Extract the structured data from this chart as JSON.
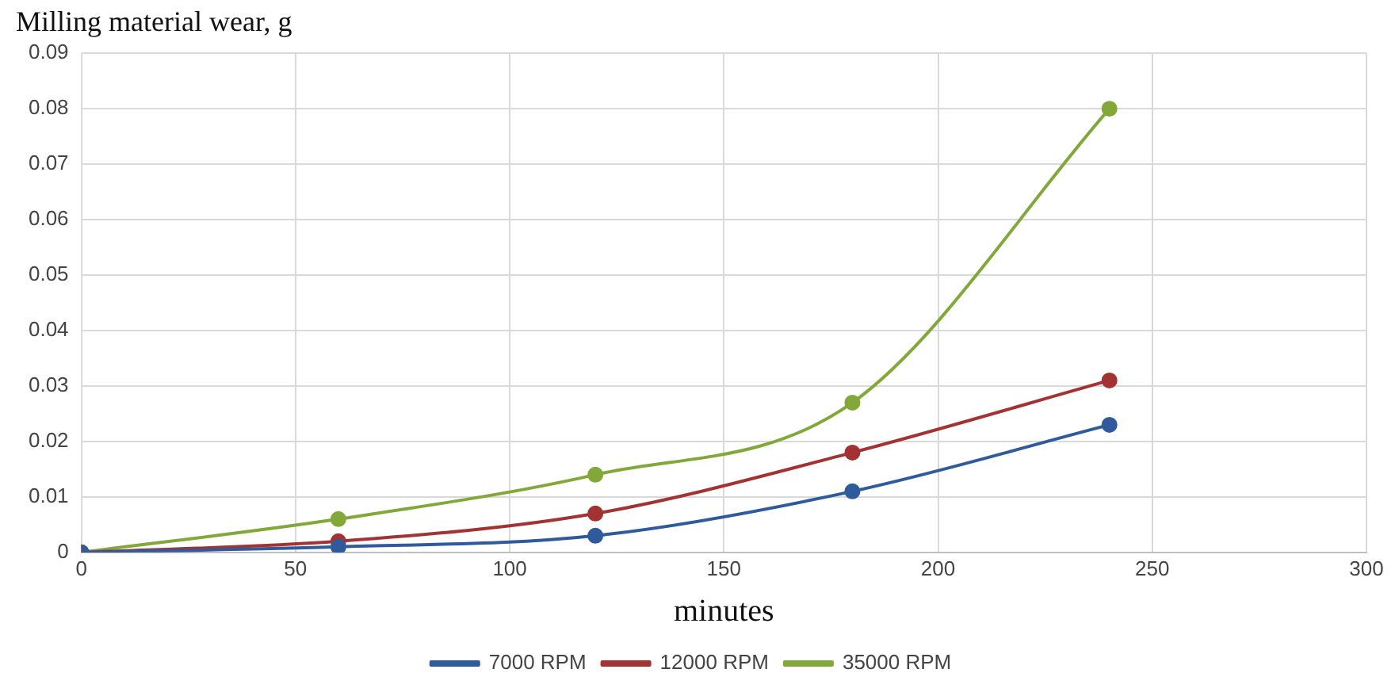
{
  "chart_data": {
    "type": "line",
    "title": "Milling material wear, g",
    "xlabel": "minutes",
    "x": [
      0,
      60,
      120,
      180,
      240
    ],
    "series": [
      {
        "name": "7000 RPM",
        "color": "#2f5b9c",
        "values": [
          0,
          0.001,
          0.003,
          0.011,
          0.023
        ]
      },
      {
        "name": "12000 RPM",
        "color": "#a33232",
        "values": [
          0,
          0.002,
          0.007,
          0.018,
          0.031
        ]
      },
      {
        "name": "35000 RPM",
        "color": "#82a83a",
        "values": [
          0,
          0.006,
          0.014,
          0.027,
          0.08
        ]
      }
    ],
    "xlim": [
      0,
      300
    ],
    "xticks": [
      0,
      50,
      100,
      150,
      200,
      250,
      300
    ],
    "ylim": [
      0,
      0.09
    ],
    "yticks": [
      0,
      0.01,
      0.02,
      0.03,
      0.04,
      0.05,
      0.06,
      0.07,
      0.08,
      0.09
    ],
    "grid": true,
    "legend": "bottom",
    "marker": "circle",
    "line_style": "solid"
  }
}
